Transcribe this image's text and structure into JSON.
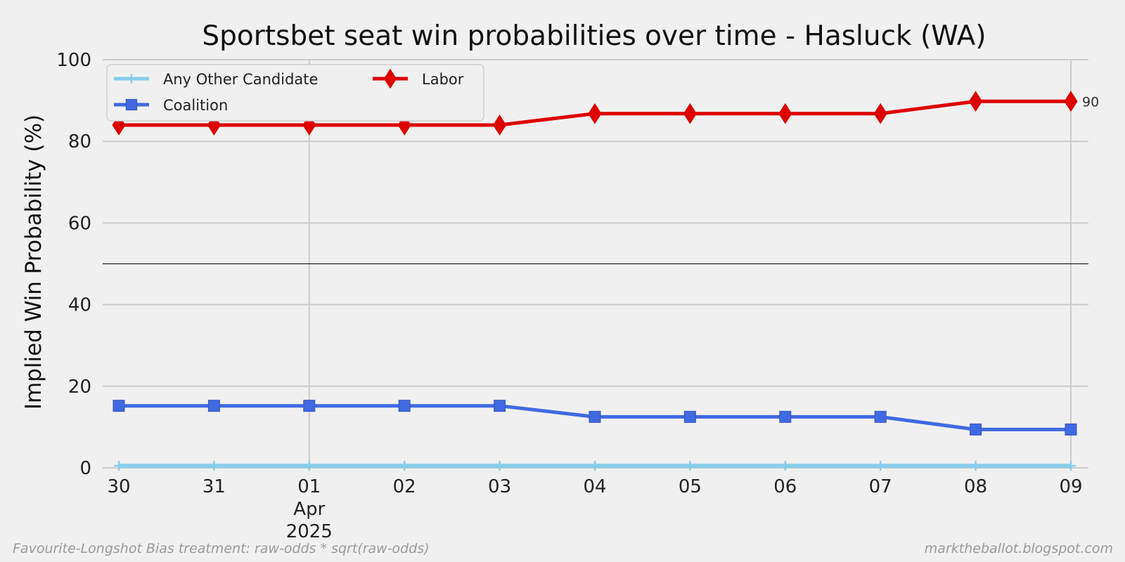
{
  "chart_data": {
    "type": "line",
    "title": "Sportsbet seat win probabilities over time - Hasluck (WA)",
    "ylabel": "Implied Win Probability (%)",
    "xlabel": "",
    "ylim": [
      0,
      100
    ],
    "yticks": [
      0,
      20,
      40,
      60,
      80,
      100
    ],
    "x": [
      "2025-03-30",
      "2025-03-31",
      "2025-04-01",
      "2025-04-02",
      "2025-04-03",
      "2025-04-04",
      "2025-04-05",
      "2025-04-06",
      "2025-04-07",
      "2025-04-08",
      "2025-04-09"
    ],
    "xtick_labels": [
      "30",
      "31",
      "01",
      "02",
      "03",
      "04",
      "05",
      "06",
      "07",
      "08",
      "09"
    ],
    "xtick_sublabel": {
      "at": "2025-04-01",
      "lines": [
        "Apr",
        "2025"
      ]
    },
    "reference_line": 50,
    "grid": true,
    "legend_position": "upper-left",
    "series": [
      {
        "name": "Any Other Candidate",
        "color": "#87ceeb",
        "marker": "plus",
        "values": [
          0.5,
          0.5,
          0.5,
          0.5,
          0.5,
          0.5,
          0.5,
          0.5,
          0.5,
          0.5,
          0.5
        ]
      },
      {
        "name": "Coalition",
        "color": "#4169e1",
        "marker": "square",
        "values": [
          15.2,
          15.2,
          15.2,
          15.2,
          15.2,
          12.5,
          12.5,
          12.5,
          12.5,
          9.4,
          9.4
        ]
      },
      {
        "name": "Labor",
        "color": "#dd0000",
        "marker": "diamond",
        "values": [
          84,
          84,
          84,
          84,
          84,
          86.8,
          86.8,
          86.8,
          86.8,
          89.8,
          89.8
        ],
        "end_label": "90"
      }
    ]
  },
  "footer": {
    "left": "Favourite-Longshot Bias treatment: raw-odds * sqrt(raw-odds)",
    "right": "marktheballot.blogspot.com"
  }
}
